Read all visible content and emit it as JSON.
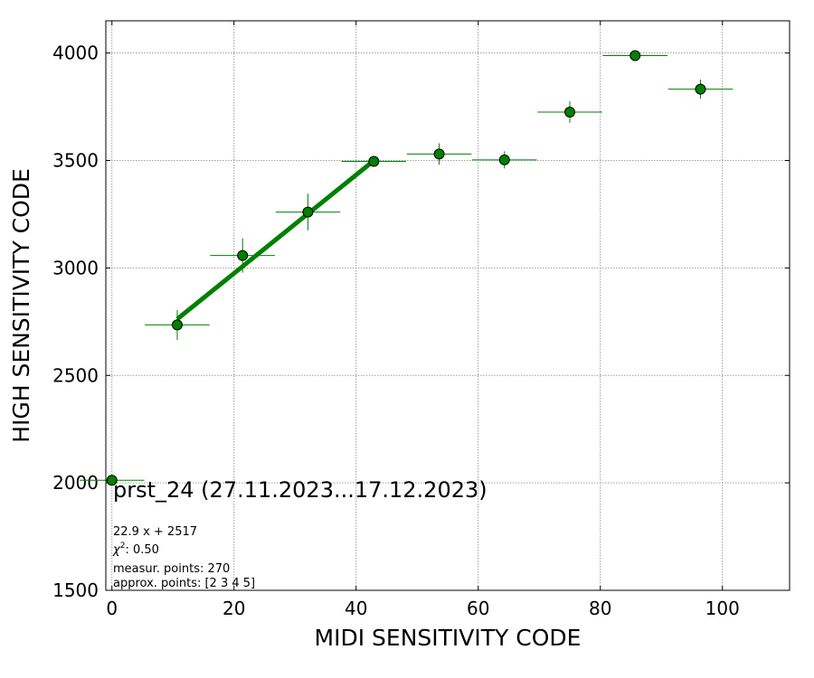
{
  "chart_data": {
    "type": "scatter",
    "xlabel": "MIDI SENSITIVITY CODE",
    "ylabel": "HIGH SENSITIVITY CODE",
    "xlim": [
      -1,
      111
    ],
    "ylim": [
      1500,
      4150
    ],
    "x_ticks": [
      0,
      20,
      40,
      60,
      80,
      100
    ],
    "y_ticks": [
      1500,
      2000,
      2500,
      3000,
      3500,
      4000
    ],
    "grid": true,
    "colors": {
      "marker": "#008000",
      "marker_edge": "#000000",
      "fit_line": "#008000",
      "grid": "#808080"
    },
    "series": [
      {
        "points": [
          {
            "x": 0,
            "y": 2012,
            "xerr": 5.3,
            "yerr": 0
          },
          {
            "x": 10.7,
            "y": 2735,
            "xerr": 5.3,
            "yerr": 70
          },
          {
            "x": 21.4,
            "y": 3058,
            "xerr": 5.3,
            "yerr": 80
          },
          {
            "x": 32.1,
            "y": 3260,
            "xerr": 5.3,
            "yerr": 85
          },
          {
            "x": 42.9,
            "y": 3496,
            "xerr": 5.3,
            "yerr": 15
          },
          {
            "x": 53.6,
            "y": 3530,
            "xerr": 5.3,
            "yerr": 50
          },
          {
            "x": 64.3,
            "y": 3503,
            "xerr": 5.3,
            "yerr": 40
          },
          {
            "x": 75.0,
            "y": 3725,
            "xerr": 5.3,
            "yerr": 50
          },
          {
            "x": 85.7,
            "y": 3988,
            "xerr": 5.3,
            "yerr": 0
          },
          {
            "x": 96.4,
            "y": 3832,
            "xerr": 5.3,
            "yerr": 45
          }
        ]
      }
    ],
    "fit": {
      "slope": 22.9,
      "intercept": 2517,
      "x_from": 10.7,
      "x_to": 42.9
    },
    "annotations": {
      "title": "prst_24 (27.11.2023...17.12.2023)",
      "equation": "22.9 x + 2517",
      "chi_label": "χ",
      "chi_sup": "2",
      "chi_value": ": 0.50",
      "measur_points": "measur. points: 270",
      "approx_points": "approx. points: [2 3 4 5]"
    }
  }
}
